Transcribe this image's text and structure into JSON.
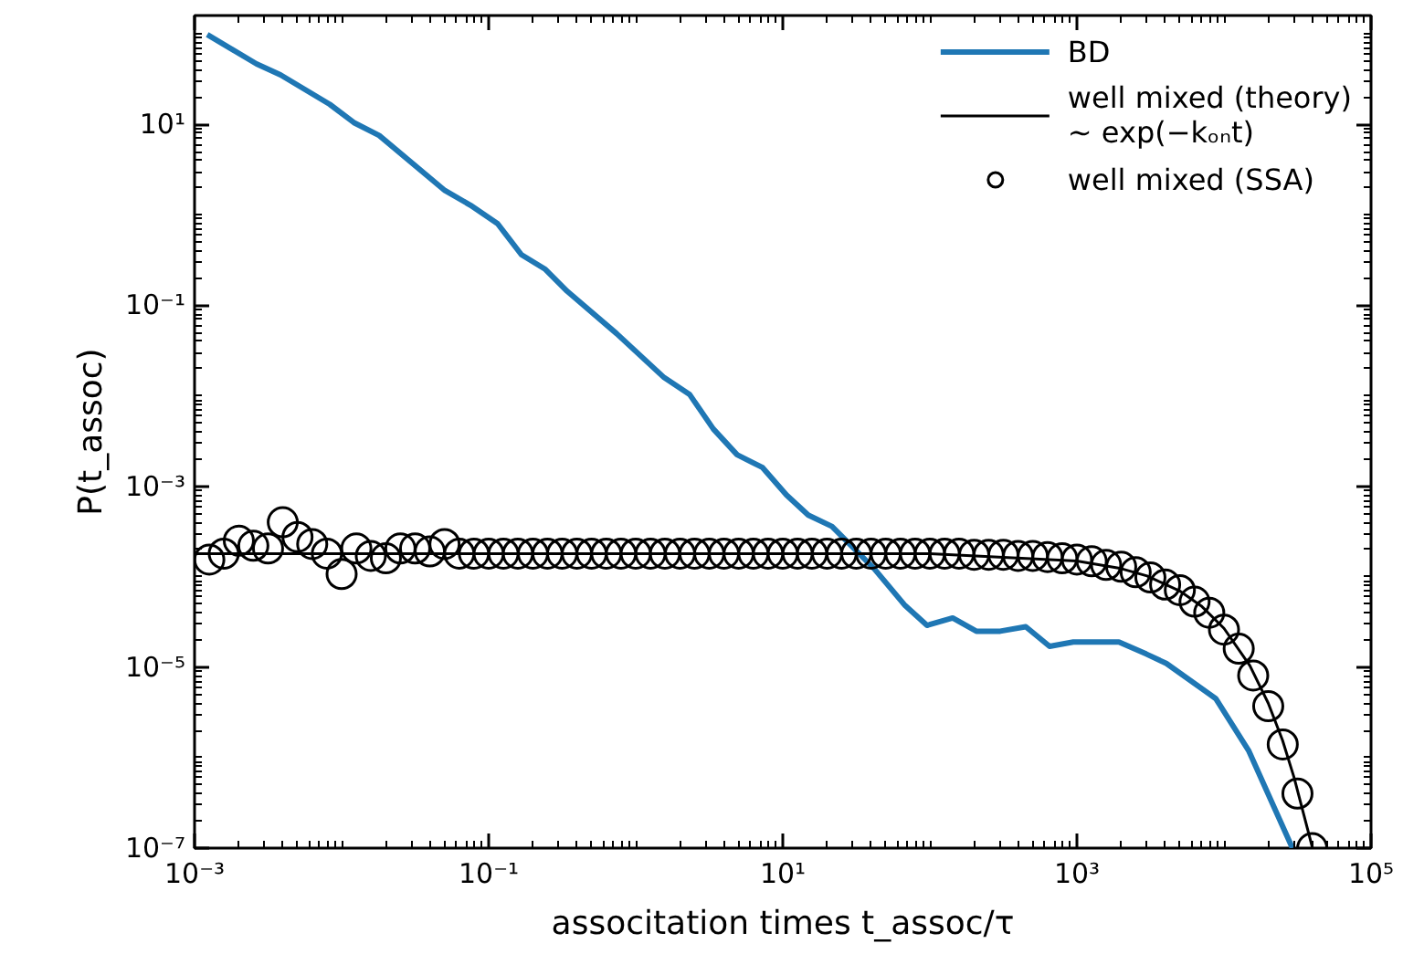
{
  "chart_data": {
    "type": "line",
    "xlabel": "associtation times t_assoc/τ",
    "ylabel": "P(t_assoc)",
    "log": "xy",
    "grid": false,
    "legend": "top right",
    "xlim": [
      0.001,
      100000
    ],
    "ylim": [
      1e-07,
      160
    ],
    "xticks": [
      {
        "value": 0.001,
        "label": "10⁻³"
      },
      {
        "value": 0.1,
        "label": "10⁻¹"
      },
      {
        "value": 10,
        "label": "10¹"
      },
      {
        "value": 1000,
        "label": "10³"
      },
      {
        "value": 100000,
        "label": "10⁵"
      }
    ],
    "yticks": [
      {
        "value": 1e-07,
        "label": "10⁻⁷"
      },
      {
        "value": 1e-05,
        "label": "10⁻⁵"
      },
      {
        "value": 0.001,
        "label": "10⁻³"
      },
      {
        "value": 0.1,
        "label": "10⁻¹"
      },
      {
        "value": 10,
        "label": "10¹"
      }
    ],
    "series": [
      {
        "name": "BD",
        "color": "#1f77b4",
        "x": [
          0.00122,
          0.00264,
          0.00384,
          0.0083,
          0.0121,
          0.018,
          0.0504,
          0.0752,
          0.115,
          0.167,
          0.243,
          0.342,
          0.741,
          1.56,
          2.32,
          3.37,
          4.89,
          7.29,
          10.6,
          14.9,
          21.6,
          41.8,
          67.9,
          95.7,
          143,
          207,
          301,
          449,
          652,
          944,
          1930,
          2960,
          4060,
          8790,
          14700,
          29200
        ],
        "values": [
          98.6,
          46.7,
          35.3,
          16.7,
          10.5,
          7.55,
          1.86,
          1.28,
          0.8,
          0.363,
          0.25,
          0.143,
          0.0488,
          0.0159,
          0.0104,
          0.0043,
          0.00223,
          0.00161,
          0.0008,
          0.00048,
          0.00036,
          0.000123,
          4.8e-05,
          2.9e-05,
          3.5e-05,
          2.5e-05,
          2.5e-05,
          2.8e-05,
          1.7e-05,
          1.9e-05,
          1.9e-05,
          1.4e-05,
          1.1e-05,
          4.5e-06,
          1.2e-06,
          1e-07
        ]
      },
      {
        "name": "well mixed (theory)\n∼ exp(−kₒₙt)",
        "color": "#000000",
        "x": [
          0.001,
          1,
          100,
          1000,
          2000,
          3000,
          5000,
          7000,
          10000,
          15000,
          20000,
          25000,
          30000,
          35000,
          40000
        ],
        "values": [
          0.00018,
          0.00018,
          0.00018,
          0.000149,
          0.000123,
          0.000102,
          6.97e-05,
          4.76e-05,
          2.69e-05,
          1.04e-05,
          4e-06,
          1.56e-06,
          6e-07,
          2.3e-07,
          1e-07
        ]
      },
      {
        "name": "well mixed (SSA)",
        "type": "scatter",
        "marker": "circle",
        "color": "#000000",
        "x": [
          0.00126,
          0.00158,
          0.002,
          0.00251,
          0.00316,
          0.00398,
          0.00501,
          0.00631,
          0.00794,
          0.01,
          0.0126,
          0.0158,
          0.02,
          0.0251,
          0.0316,
          0.0398,
          0.0501,
          0.0631,
          0.0794,
          0.1,
          0.126,
          0.158,
          0.2,
          0.251,
          0.316,
          0.398,
          0.501,
          0.631,
          0.794,
          1,
          1.26,
          1.58,
          2,
          2.51,
          3.16,
          3.98,
          5.01,
          6.31,
          7.94,
          10,
          12.6,
          15.8,
          20,
          25.1,
          31.6,
          39.8,
          50.1,
          63.1,
          79.4,
          100,
          126,
          158,
          200,
          251,
          316,
          398,
          501,
          631,
          794,
          1000,
          1260,
          1580,
          2000,
          2510,
          3160,
          3980,
          5010,
          6310,
          7940,
          10000,
          12600,
          15800,
          20000,
          25100,
          31600,
          39800
        ],
        "values": [
          0.000155,
          0.00018,
          0.00025,
          0.00022,
          0.000205,
          0.0004,
          0.000275,
          0.00023,
          0.00018,
          0.000107,
          0.000205,
          0.00017,
          0.00016,
          0.000205,
          0.000205,
          0.00019,
          0.00023,
          0.00018,
          0.00018,
          0.00018,
          0.00018,
          0.00018,
          0.00018,
          0.00018,
          0.00018,
          0.00018,
          0.00018,
          0.00018,
          0.00018,
          0.00018,
          0.00018,
          0.00018,
          0.00018,
          0.00018,
          0.00018,
          0.00018,
          0.00018,
          0.00018,
          0.00018,
          0.00018,
          0.00018,
          0.00018,
          0.00018,
          0.00018,
          0.00018,
          0.00018,
          0.00018,
          0.00018,
          0.00018,
          0.00018,
          0.00018,
          0.00018,
          0.000175,
          0.000175,
          0.000175,
          0.00017,
          0.00017,
          0.000165,
          0.00016,
          0.000155,
          0.000148,
          0.000135,
          0.000129,
          0.000112,
          9.8e-05,
          8.2e-05,
          7.1e-05,
          5.3e-05,
          4e-05,
          2.6e-05,
          1.6e-05,
          8.1e-06,
          3.7e-06,
          1.4e-06,
          4e-07,
          1e-07
        ]
      }
    ]
  }
}
